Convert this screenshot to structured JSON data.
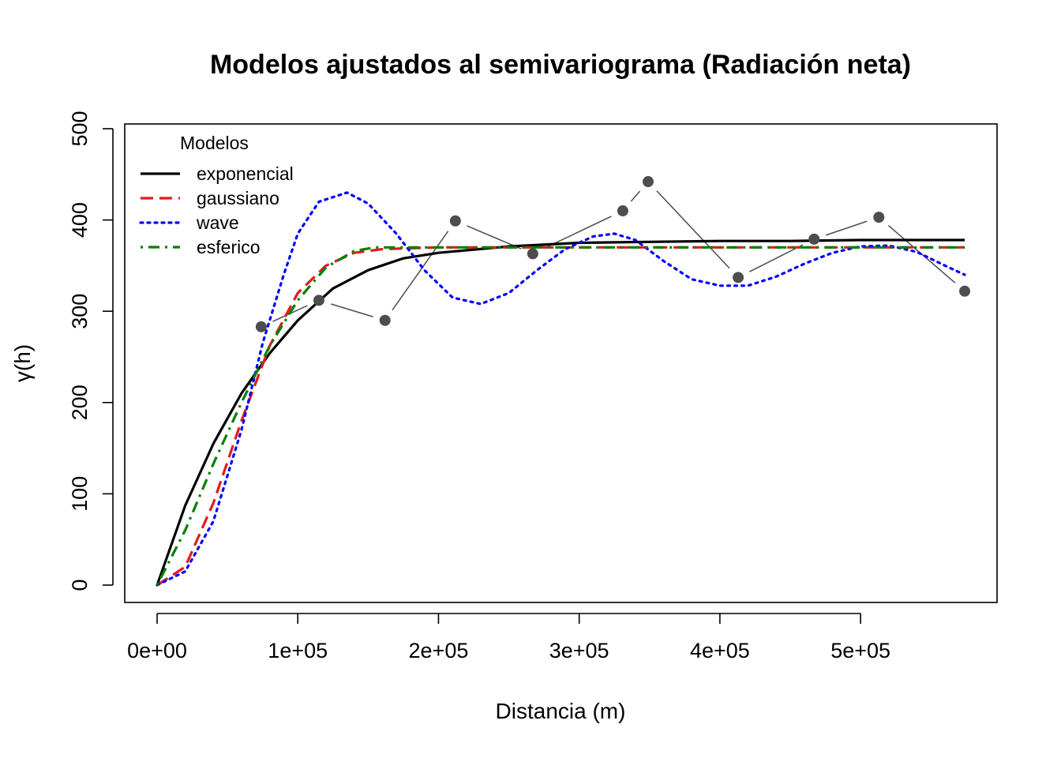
{
  "chart_data": {
    "type": "line",
    "title": "Modelos ajustados al semivariograma (Radiación neta)",
    "xlabel": "Distancia (m)",
    "ylabel": "γ(h)",
    "xlim": [
      -23000,
      600000
    ],
    "ylim": [
      -18000,
      500
    ],
    "ylim_data": [
      -18,
      500
    ],
    "x_ticks": [
      0,
      100000,
      200000,
      300000,
      400000,
      500000
    ],
    "x_tick_labels": [
      "0e+00",
      "1e+05",
      "2e+05",
      "3e+05",
      "4e+05",
      "5e+05"
    ],
    "y_ticks": [
      0,
      100,
      200,
      300,
      400,
      500
    ],
    "y_tick_labels": [
      "0",
      "100",
      "200",
      "300",
      "400",
      "500"
    ],
    "legend": {
      "title": "Modelos",
      "position": "top-left"
    },
    "empirical": {
      "color": "#4d4d4d",
      "x": [
        74000,
        115000,
        162000,
        212000,
        267000,
        331000,
        349000,
        413000,
        467000,
        513000,
        574000
      ],
      "y": [
        283,
        312,
        290,
        399,
        363,
        410,
        442,
        337,
        379,
        403,
        322
      ]
    },
    "series": [
      {
        "name": "exponencial",
        "color": "#000000",
        "dash": "solid",
        "x": [
          0,
          20000,
          40000,
          60000,
          80000,
          100000,
          125000,
          150000,
          175000,
          200000,
          250000,
          300000,
          350000,
          400000,
          450000,
          500000,
          550000,
          574000
        ],
        "y": [
          0,
          87,
          155,
          210,
          254,
          290,
          325,
          345,
          358,
          364,
          371,
          375,
          376,
          377,
          377,
          378,
          378,
          378
        ]
      },
      {
        "name": "gaussiano",
        "color": "#e41a1c",
        "dash": "dashed",
        "x": [
          0,
          20000,
          40000,
          60000,
          80000,
          100000,
          120000,
          140000,
          160000,
          180000,
          200000,
          250000,
          300000,
          350000,
          400000,
          450000,
          500000,
          574000
        ],
        "y": [
          0,
          20,
          90,
          180,
          262,
          320,
          350,
          364,
          368,
          369,
          370,
          370,
          370,
          370,
          370,
          370,
          370,
          370
        ]
      },
      {
        "name": "wave",
        "color": "#0000ff",
        "dash": "dotted",
        "x": [
          0,
          20000,
          40000,
          60000,
          75000,
          90000,
          100000,
          115000,
          135000,
          150000,
          170000,
          190000,
          210000,
          230000,
          250000,
          270000,
          290000,
          310000,
          325000,
          340000,
          360000,
          380000,
          400000,
          420000,
          440000,
          460000,
          480000,
          500000,
          520000,
          540000,
          560000,
          574000
        ],
        "y": [
          0,
          15,
          70,
          170,
          265,
          340,
          385,
          420,
          430,
          418,
          385,
          345,
          315,
          308,
          320,
          345,
          368,
          382,
          385,
          378,
          355,
          335,
          328,
          328,
          338,
          352,
          364,
          371,
          372,
          365,
          350,
          340
        ]
      },
      {
        "name": "esferico",
        "color": "#008000",
        "dash": "dashdot",
        "x": [
          0,
          20000,
          40000,
          60000,
          80000,
          100000,
          120000,
          140000,
          155000,
          175000,
          200000,
          250000,
          300000,
          350000,
          400000,
          450000,
          500000,
          574000
        ],
        "y": [
          0,
          60,
          133,
          200,
          262,
          312,
          348,
          366,
          370,
          370,
          370,
          370,
          370,
          370,
          370,
          370,
          370,
          370
        ]
      }
    ]
  }
}
